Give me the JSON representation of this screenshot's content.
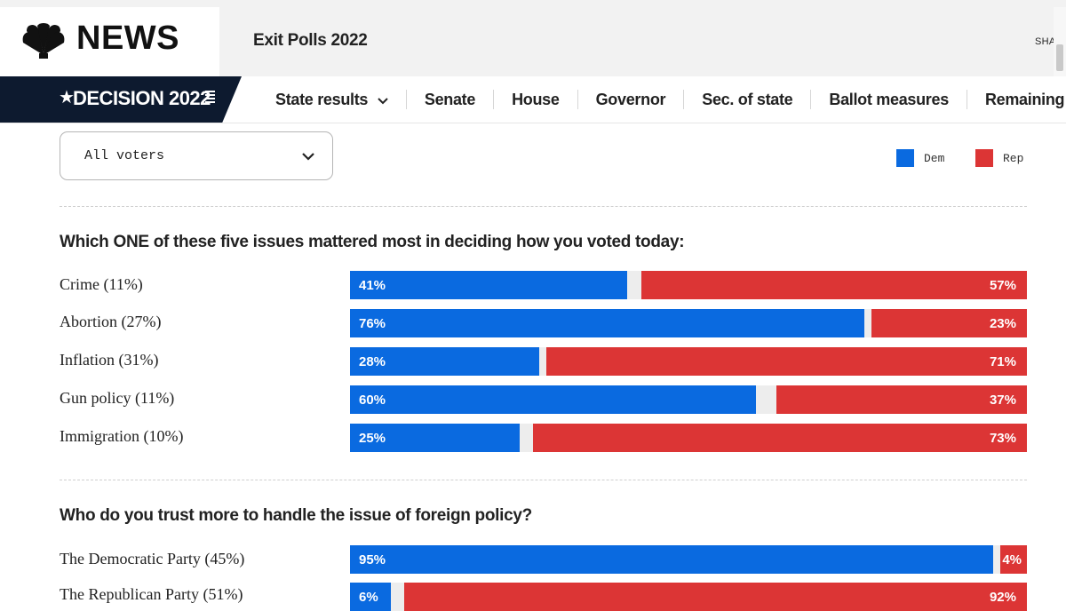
{
  "header": {
    "brand": "NEWS",
    "title": "Exit Polls 2022",
    "share_label": "SHARE"
  },
  "nav": {
    "badge": "DECISION 2022",
    "items": [
      {
        "label": "State results",
        "dropdown": true
      },
      {
        "label": "Senate"
      },
      {
        "label": "House"
      },
      {
        "label": "Governor"
      },
      {
        "label": "Sec. of state"
      },
      {
        "label": "Ballot measures"
      },
      {
        "label": "Remaining v"
      }
    ]
  },
  "filter": {
    "selected": "All voters"
  },
  "legend": {
    "dem": {
      "label": "Dem",
      "color": "#0a6ae0"
    },
    "rep": {
      "label": "Rep",
      "color": "#dc3535"
    }
  },
  "questions": [
    {
      "text": "Which ONE of these five issues mattered most in deciding how you voted today:",
      "rows": [
        {
          "label": "Crime (11%)",
          "dem": 41,
          "rep": 57,
          "dem_text": "41%",
          "rep_text": "57%"
        },
        {
          "label": "Abortion (27%)",
          "dem": 76,
          "rep": 23,
          "dem_text": "76%",
          "rep_text": "23%"
        },
        {
          "label": "Inflation (31%)",
          "dem": 28,
          "rep": 71,
          "dem_text": "28%",
          "rep_text": "71%"
        },
        {
          "label": "Gun policy (11%)",
          "dem": 60,
          "rep": 37,
          "dem_text": "60%",
          "rep_text": "37%"
        },
        {
          "label": "Immigration (10%)",
          "dem": 25,
          "rep": 73,
          "dem_text": "25%",
          "rep_text": "73%"
        }
      ]
    },
    {
      "text": "Who do you trust more to handle the issue of foreign policy?",
      "rows": [
        {
          "label": "The Democratic Party (45%)",
          "dem": 95,
          "rep": 4,
          "dem_text": "95%",
          "rep_text": "4%"
        },
        {
          "label": "The Republican Party (51%)",
          "dem": 6,
          "rep": 92,
          "dem_text": "6%",
          "rep_text": "92%"
        }
      ]
    }
  ],
  "colors": {
    "dem": "#0a6ae0",
    "rep": "#dc3535",
    "badge_bg": "#0d1a2f"
  }
}
